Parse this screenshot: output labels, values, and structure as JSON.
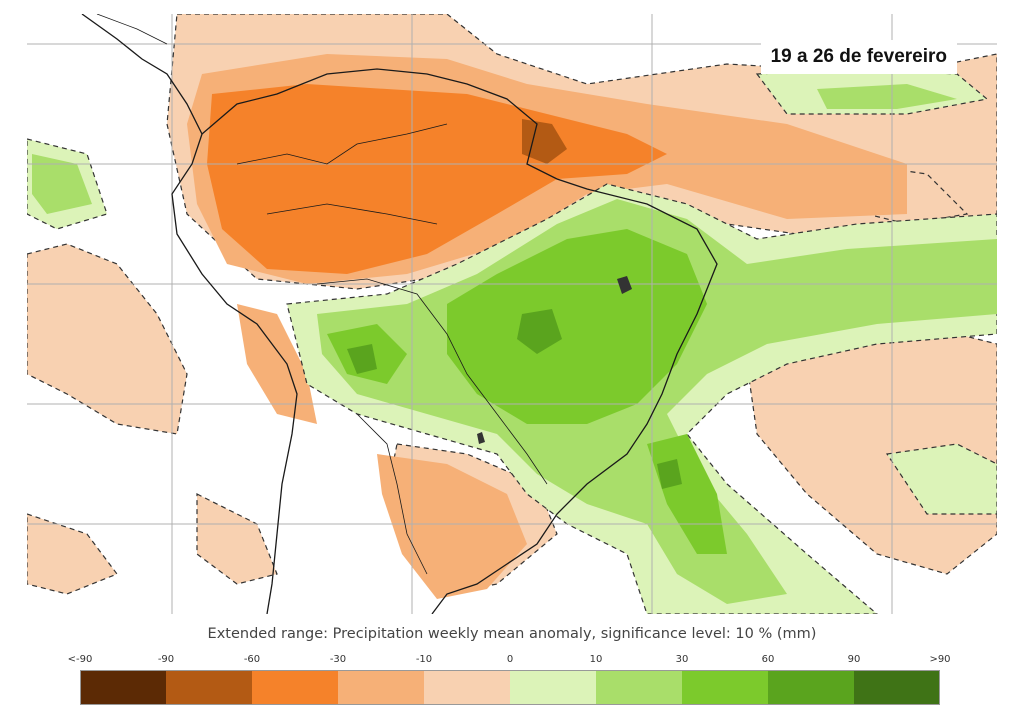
{
  "map": {
    "badge": "19 a 26 de fevereiro",
    "caption": "Extended range: Precipitation weekly mean anomaly, significance level: 10 % (mm)"
  },
  "legend": {
    "ticks": [
      "<-90",
      "-90",
      "-60",
      "-30",
      "-10",
      "0",
      "10",
      "30",
      "60",
      "90",
      ">90"
    ],
    "colors": [
      "#5c2a05",
      "#b35a14",
      "#f5822a",
      "#f6b077",
      "#f8d1b1",
      "#dcf3b8",
      "#a9de6a",
      "#7cca2c",
      "#5aa41e",
      "#3f7316"
    ]
  },
  "colors": {
    "dry_strong": "#f5822a",
    "dry_moderate": "#f6b077",
    "dry_light": "#f8d1b1",
    "dry_extreme": "#b35a14",
    "wet_light": "#dcf3b8",
    "wet_moderate": "#a9de6a",
    "wet_strong": "#7cca2c",
    "wet_extreme": "#5aa41e"
  }
}
